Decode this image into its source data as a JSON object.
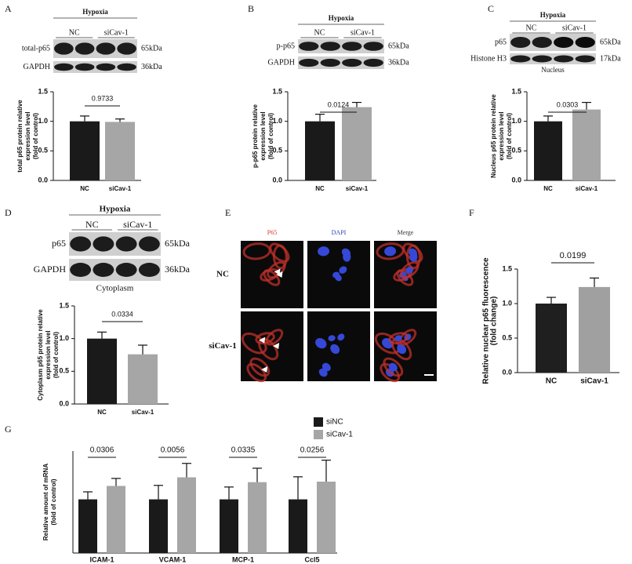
{
  "panels": {
    "A": {
      "letter": "A",
      "condition": "Hypoxia",
      "groups": [
        "NC",
        "siCav-1"
      ],
      "blots": [
        {
          "label": "total-p65",
          "size": "65kDa"
        },
        {
          "label": "GAPDH",
          "size": "36kDa"
        }
      ]
    },
    "B": {
      "letter": "B",
      "condition": "Hypoxia",
      "groups": [
        "NC",
        "siCav-1"
      ],
      "blots": [
        {
          "label": "p-p65",
          "size": "65kDa"
        },
        {
          "label": "GAPDH",
          "size": "36kDa"
        }
      ]
    },
    "C": {
      "letter": "C",
      "condition": "Hypoxia",
      "groups": [
        "NC",
        "siCav-1"
      ],
      "blots": [
        {
          "label": "p65",
          "size": "65kDa"
        },
        {
          "label": "Histone H3",
          "size": "17kDa"
        }
      ],
      "caption": "Nucleus"
    },
    "D": {
      "letter": "D",
      "condition": "Hypoxia",
      "groups": [
        "NC",
        "siCav-1"
      ],
      "blots": [
        {
          "label": "p65",
          "size": "65kDa"
        },
        {
          "label": "GAPDH",
          "size": "36kDa"
        }
      ],
      "caption": "Cytoplasm"
    },
    "E": {
      "letter": "E",
      "channels": [
        "P65",
        "DAPI",
        "Merge"
      ],
      "rows": [
        "NC",
        "siCav-1"
      ]
    },
    "F": {
      "letter": "F"
    },
    "G": {
      "letter": "G"
    }
  },
  "chart_data": [
    {
      "type": "bar",
      "ylabel": [
        "total p65 protein relative",
        "expression level",
        "(fold of control)"
      ],
      "categories": [
        "NC",
        "siCav-1"
      ],
      "values": [
        1.0,
        0.99
      ],
      "errors": [
        0.09,
        0.05
      ],
      "colors": [
        "#1a1a1a",
        "#a6a6a6"
      ],
      "ylim": [
        0,
        1.5
      ],
      "yticks": [
        {
          "value": 0,
          "label": "0.0"
        },
        {
          "value": 0.5,
          "label": "0.5"
        },
        {
          "value": 1,
          "label": "1.0"
        },
        {
          "value": 1.5,
          "label": "1.5"
        }
      ],
      "annotations": [
        "0.9733"
      ]
    },
    {
      "type": "bar",
      "ylabel": [
        "p-p65 protein relative",
        "expression level",
        "(fold of control)"
      ],
      "categories": [
        "NC",
        "siCav-1"
      ],
      "values": [
        1.0,
        1.24
      ],
      "errors": [
        0.12,
        0.08
      ],
      "colors": [
        "#1a1a1a",
        "#a6a6a6"
      ],
      "ylim": [
        0,
        1.5
      ],
      "yticks": [
        {
          "value": 0,
          "label": "0.0"
        },
        {
          "value": 0.5,
          "label": "0.5"
        },
        {
          "value": 1,
          "label": "1.0"
        },
        {
          "value": 1.5,
          "label": "1.5"
        }
      ],
      "annotations": [
        "0.0124"
      ]
    },
    {
      "type": "bar",
      "ylabel": [
        "Nucleus p65 protein relative",
        "expression level",
        "(fold of control)"
      ],
      "categories": [
        "NC",
        "siCav-1"
      ],
      "values": [
        1.0,
        1.2
      ],
      "errors": [
        0.09,
        0.12
      ],
      "colors": [
        "#1a1a1a",
        "#a6a6a6"
      ],
      "ylim": [
        0,
        1.5
      ],
      "yticks": [
        {
          "value": 0,
          "label": "0.0"
        },
        {
          "value": 0.5,
          "label": "0.5"
        },
        {
          "value": 1,
          "label": "1.0"
        },
        {
          "value": 1.5,
          "label": "1.5"
        }
      ],
      "annotations": [
        "0.0303"
      ]
    },
    {
      "type": "bar",
      "ylabel": [
        "Cytoplasm p65 protein relative",
        "expression level",
        "(fold of control)"
      ],
      "categories": [
        "NC",
        "siCav-1"
      ],
      "values": [
        1.0,
        0.76
      ],
      "errors": [
        0.1,
        0.14
      ],
      "colors": [
        "#1a1a1a",
        "#a6a6a6"
      ],
      "ylim": [
        0,
        1.5
      ],
      "yticks": [
        {
          "value": 0,
          "label": "0.0"
        },
        {
          "value": 0.5,
          "label": "0.5"
        },
        {
          "value": 1,
          "label": "1.0"
        },
        {
          "value": 1.5,
          "label": "1.5"
        }
      ],
      "annotations": [
        "0.0334"
      ]
    },
    {
      "type": "bar",
      "ylabel": [
        "Relative nuclear p65 fluorescence",
        "(fold change)"
      ],
      "categories": [
        "NC",
        "siCav-1"
      ],
      "values": [
        1.0,
        1.24
      ],
      "errors": [
        0.09,
        0.13
      ],
      "colors": [
        "#1f1f1f",
        "#a0a0a0"
      ],
      "ylim": [
        0,
        1.5
      ],
      "yticks": [
        {
          "value": 0,
          "label": "0.0"
        },
        {
          "value": 0.5,
          "label": "0.5"
        },
        {
          "value": 1,
          "label": "1.0"
        },
        {
          "value": 1.5,
          "label": "1.5"
        }
      ],
      "annotations": [
        "0.0199"
      ]
    },
    {
      "type": "grouped_bar",
      "ylabel": [
        "Relative amount of  mRNA",
        "(fold of control)"
      ],
      "categories": [
        "ICAM-1",
        "VCAM-1",
        "MCP-1",
        "Ccl5"
      ],
      "series": [
        {
          "name": "siNC",
          "color": "#1a1a1a",
          "values": [
            1,
            1,
            1,
            1
          ],
          "errors": [
            0.14,
            0.26,
            0.23,
            0.42
          ]
        },
        {
          "name": "siCav-1",
          "color": "#a6a6a6",
          "values": [
            1.25,
            1.41,
            1.32,
            1.33
          ],
          "errors": [
            0.14,
            0.26,
            0.26,
            0.4
          ]
        }
      ],
      "ylim": [
        0,
        1.9
      ],
      "annotations": [
        "0.0306",
        "0.0056",
        "0.0335",
        "0.0256"
      ]
    }
  ]
}
